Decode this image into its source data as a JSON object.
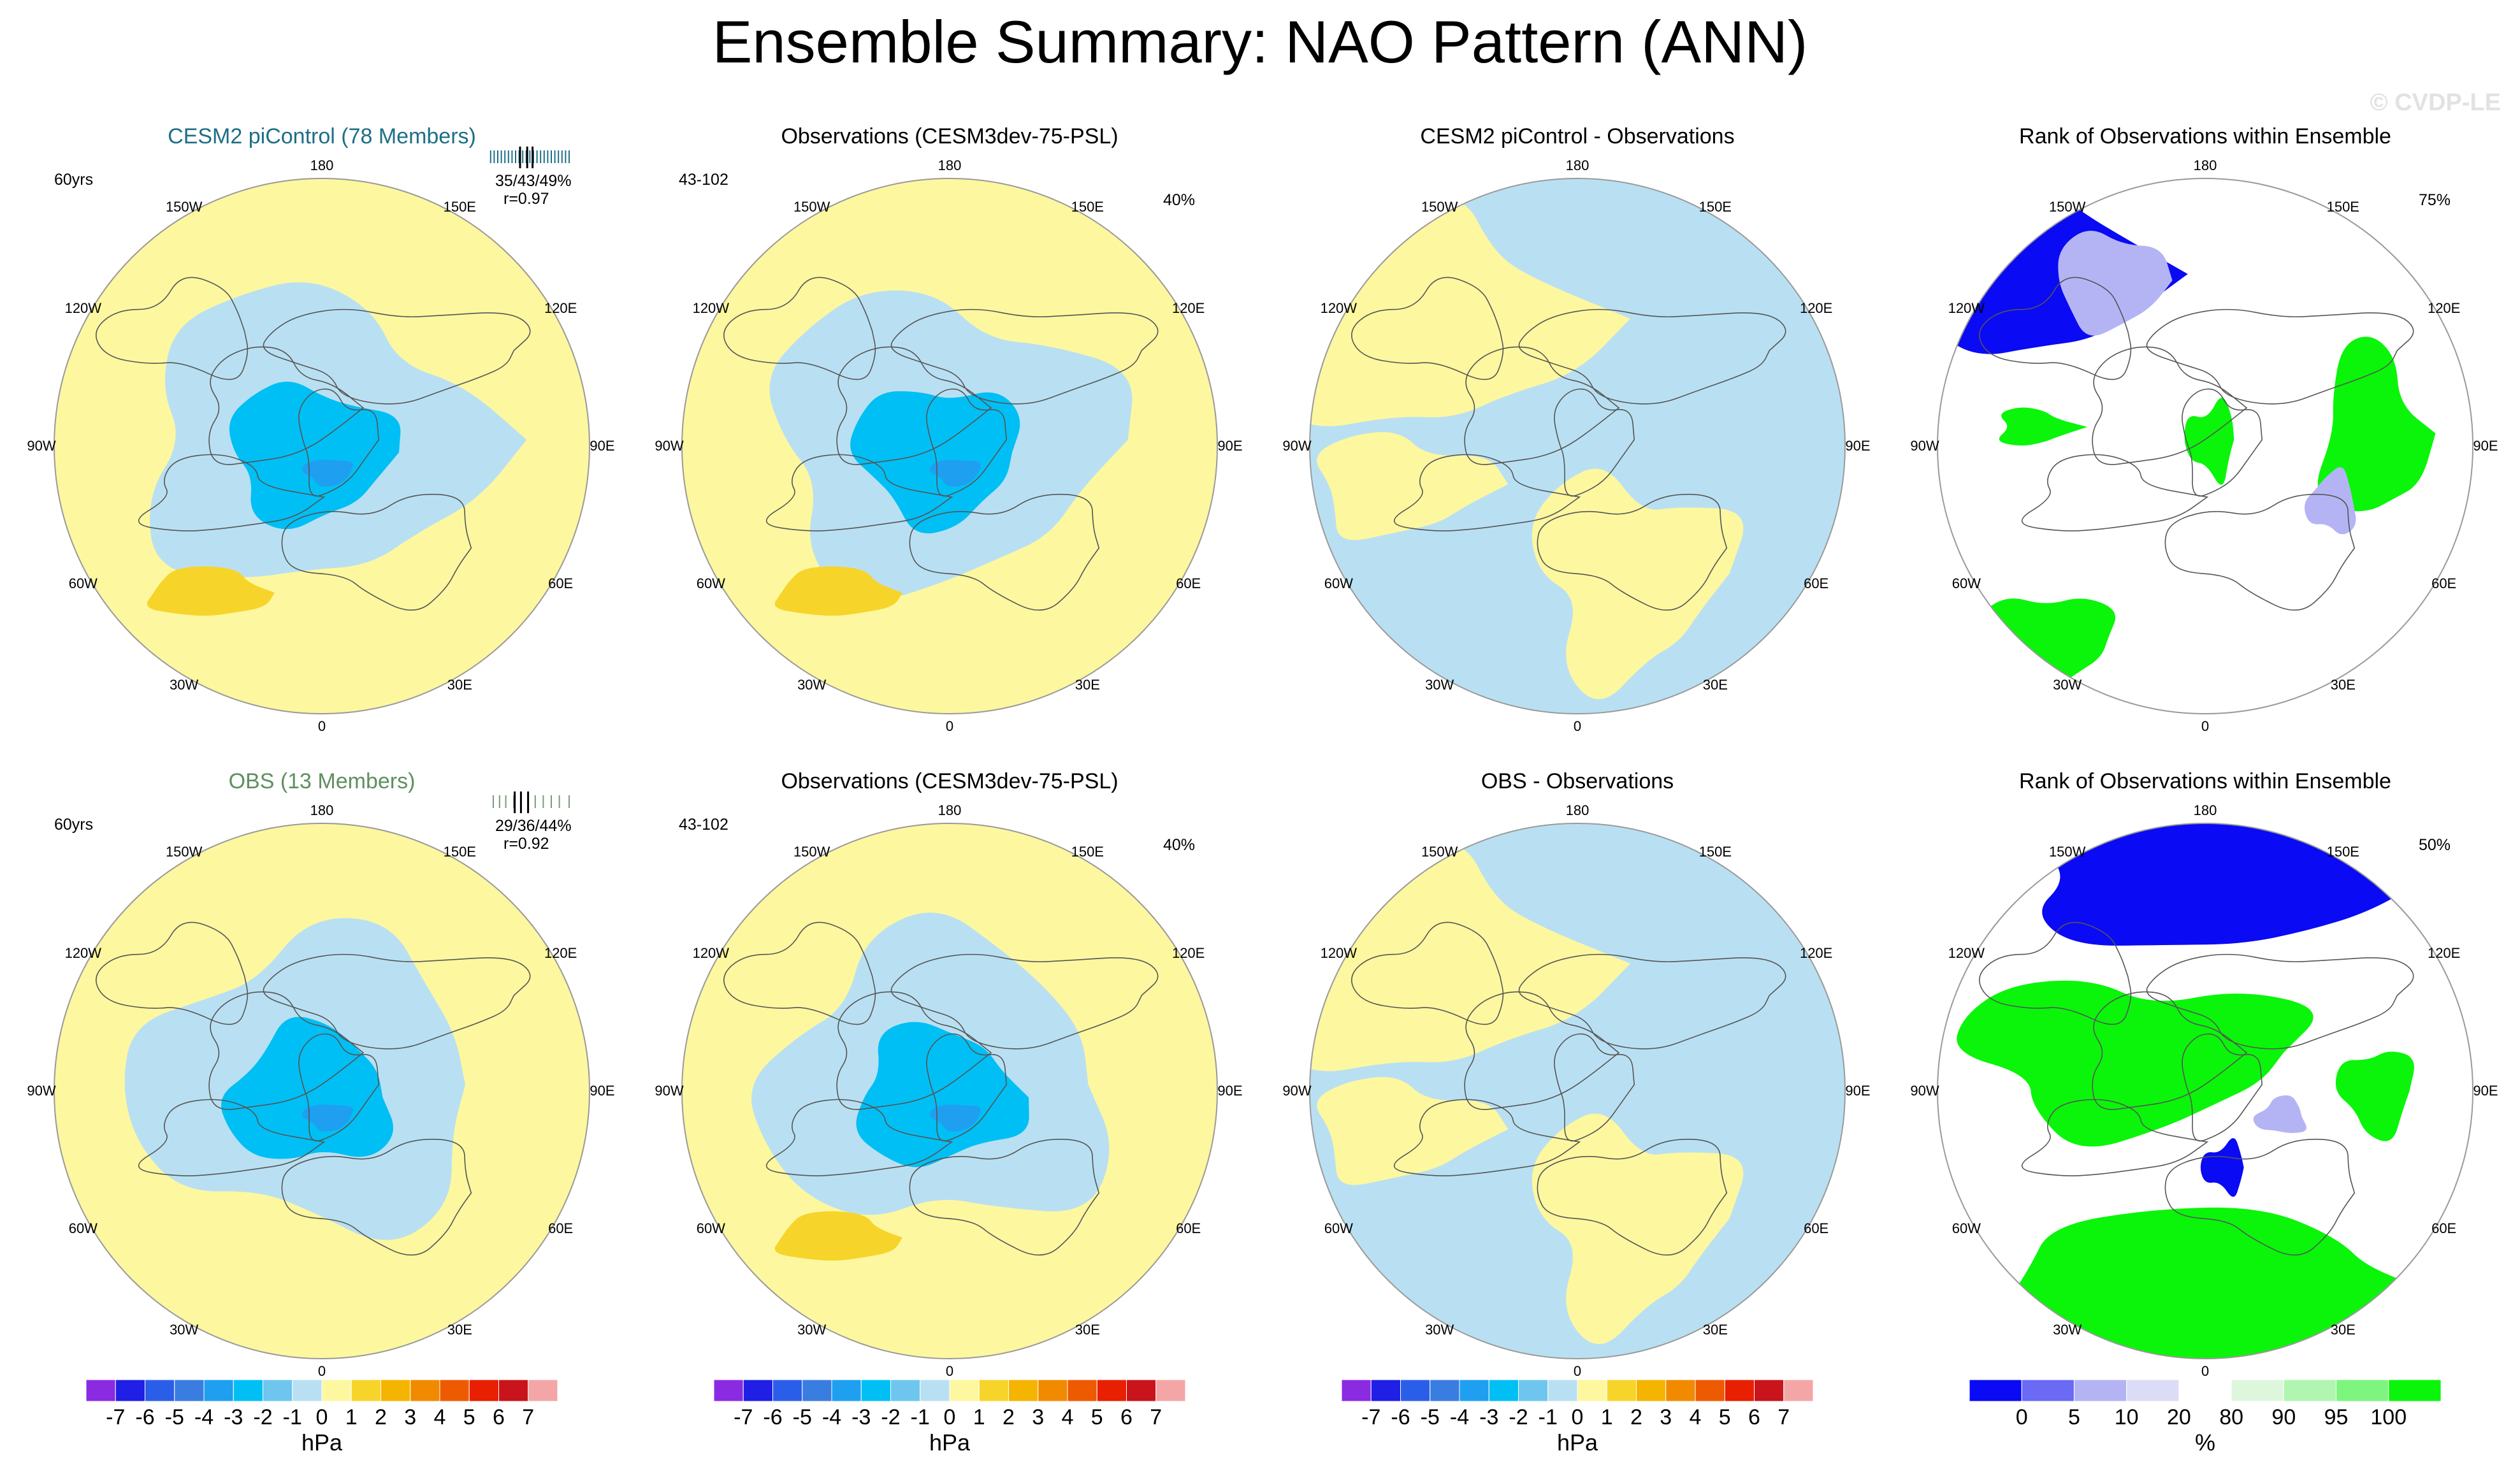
{
  "page_title": "Ensemble Summary: NAO Pattern (ANN)",
  "watermark": "© CVDP-LE",
  "colors": {
    "ensemble_title": "#1e6f86",
    "obs_title": "#5f8f5f",
    "ocean_pale": "#b9e0f2",
    "land_pale": "#fdf7a0"
  },
  "longitude_labels": [
    "180",
    "150E",
    "120E",
    "90E",
    "60E",
    "30E",
    "0",
    "30W",
    "60W",
    "90W",
    "120W",
    "150W"
  ],
  "chart_data": [
    {
      "type": "heatmap",
      "projection": "north-polar-stereographic",
      "row": 0,
      "col": 0,
      "title": "CESM2 piControl (78 Members)",
      "title_color": "ensemble",
      "left_note": "60yrs",
      "stats": "35/43/49%",
      "corr": "r=0.97",
      "strip_ticks": [
        0.02,
        0.06,
        0.1,
        0.14,
        0.18,
        0.22,
        0.26,
        0.3,
        0.34,
        0.38,
        0.42,
        0.46,
        0.5,
        0.54,
        0.58,
        0.62,
        0.66,
        0.7,
        0.74,
        0.78,
        0.82,
        0.86,
        0.9
      ],
      "strip_markers": [
        0.35,
        0.43,
        0.49
      ],
      "colorbar": "psl",
      "field_min_hPa": -4,
      "field_max_hPa": 2
    },
    {
      "type": "heatmap",
      "projection": "north-polar-stereographic",
      "row": 0,
      "col": 1,
      "title": "Observations (CESM3dev-75-PSL)",
      "left_note": "43-102",
      "pct_note": "40%",
      "colorbar": "psl",
      "field_min_hPa": -4,
      "field_max_hPa": 2
    },
    {
      "type": "heatmap",
      "projection": "north-polar-stereographic",
      "row": 0,
      "col": 2,
      "title": "CESM2 piControl - Observations",
      "colorbar": "psl",
      "field_min_hPa": -1,
      "field_max_hPa": 1
    },
    {
      "type": "heatmap",
      "projection": "north-polar-stereographic",
      "row": 0,
      "col": 3,
      "title": "Rank of Observations within Ensemble",
      "pct_note": "75%",
      "colorbar": "rank"
    },
    {
      "type": "heatmap",
      "projection": "north-polar-stereographic",
      "row": 1,
      "col": 0,
      "title": "OBS (13 Members)",
      "title_color": "obs",
      "left_note": "60yrs",
      "stats": "29/36/44%",
      "corr": "r=0.92",
      "strip_ticks": [
        0.05,
        0.12,
        0.19,
        0.28,
        0.36,
        0.44,
        0.52,
        0.61,
        0.7,
        0.79,
        0.9
      ],
      "strip_markers": [
        0.29,
        0.36,
        0.44
      ],
      "colorbar": "psl",
      "field_min_hPa": -4,
      "field_max_hPa": 1
    },
    {
      "type": "heatmap",
      "projection": "north-polar-stereographic",
      "row": 1,
      "col": 1,
      "title": "Observations (CESM3dev-75-PSL)",
      "left_note": "43-102",
      "pct_note": "40%",
      "colorbar": "psl",
      "field_min_hPa": -4,
      "field_max_hPa": 2
    },
    {
      "type": "heatmap",
      "projection": "north-polar-stereographic",
      "row": 1,
      "col": 2,
      "title": "OBS - Observations",
      "colorbar": "psl",
      "field_min_hPa": -1,
      "field_max_hPa": 1
    },
    {
      "type": "heatmap",
      "projection": "north-polar-stereographic",
      "row": 1,
      "col": 3,
      "title": "Rank of Observations within Ensemble",
      "pct_note": "50%",
      "colorbar": "rank"
    }
  ],
  "colorbars": [
    {
      "kind": "psl",
      "unit": "hPa",
      "labels": [
        "-7",
        "-6",
        "-5",
        "-4",
        "-3",
        "-2",
        "-1",
        "0",
        "1",
        "2",
        "3",
        "4",
        "5",
        "6",
        "7"
      ],
      "colors": [
        "#8a2be2",
        "#1f1fe6",
        "#2b5ee8",
        "#3a7de0",
        "#1f9ff0",
        "#00bff5",
        "#6ec6ee",
        "#b9e0f2",
        "#fdf7a0",
        "#f7d42a",
        "#f5b400",
        "#f28a00",
        "#ee5a00",
        "#e81f00",
        "#c8141a",
        "#f4a6a6"
      ]
    },
    {
      "kind": "rank",
      "unit": "%",
      "labels": [
        "0",
        "5",
        "10",
        "20",
        "80",
        "90",
        "95",
        "100"
      ],
      "colors": [
        "#0a0af5",
        "#6a6af5",
        "#b4b4f5",
        "#dcdcf7",
        "#ffffff",
        "#ddf7dd",
        "#b0f5b0",
        "#7ef57e",
        "#0af50a"
      ]
    }
  ]
}
